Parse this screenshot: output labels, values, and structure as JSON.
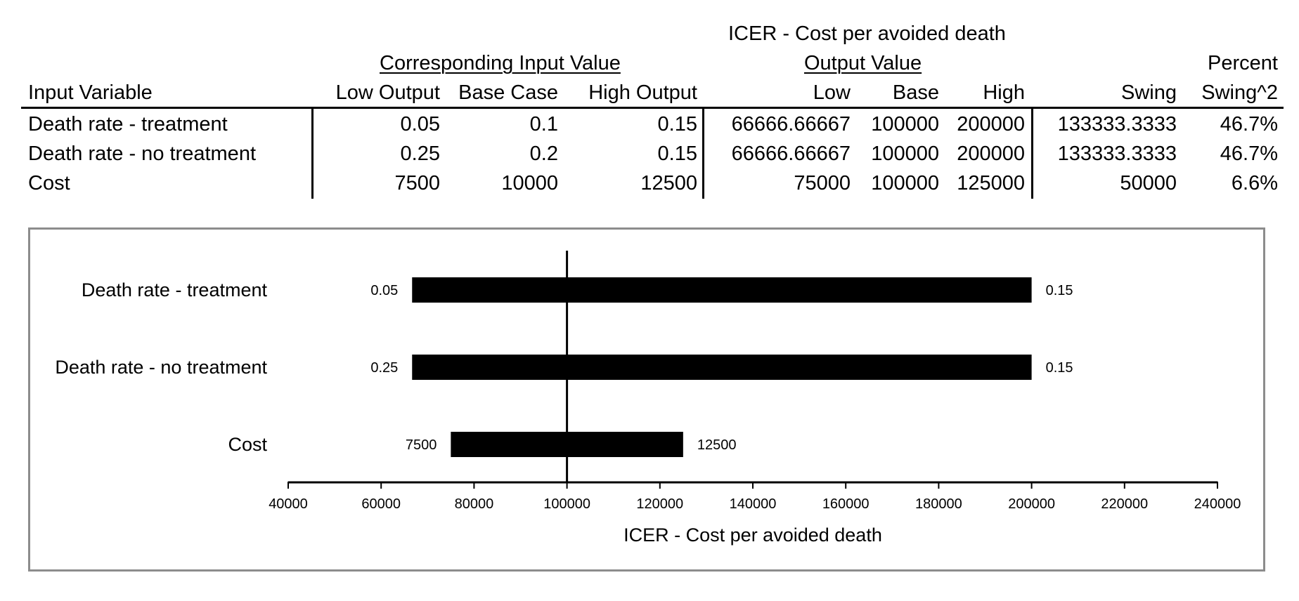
{
  "table": {
    "header_top": "ICER - Cost per avoided death",
    "group_input": "Corresponding Input Value",
    "group_output": "Output Value",
    "percent_label": "Percent",
    "columns": [
      "Input Variable",
      "Low Output",
      "Base Case",
      "High Output",
      "Low",
      "Base",
      "High",
      "Swing",
      "Swing^2"
    ],
    "rows": [
      {
        "variable": "Death rate - treatment",
        "low_input": "0.05",
        "base_input": "0.1",
        "high_input": "0.15",
        "low_out": "66666.66667",
        "base_out": "100000",
        "high_out": "200000",
        "swing": "133333.3333",
        "pct": "46.7%"
      },
      {
        "variable": "Death rate - no treatment",
        "low_input": "0.25",
        "base_input": "0.2",
        "high_input": "0.15",
        "low_out": "66666.66667",
        "base_out": "100000",
        "high_out": "200000",
        "swing": "133333.3333",
        "pct": "46.7%"
      },
      {
        "variable": "Cost",
        "low_input": "7500",
        "base_input": "10000",
        "high_input": "12500",
        "low_out": "75000",
        "base_out": "100000",
        "high_out": "125000",
        "swing": "50000",
        "pct": "6.6%"
      }
    ]
  },
  "chart_data": {
    "type": "bar",
    "orientation": "horizontal-tornado",
    "xlabel": "ICER - Cost per avoided death",
    "xlim": [
      40000,
      240000
    ],
    "xticks": [
      40000,
      60000,
      80000,
      100000,
      120000,
      140000,
      160000,
      180000,
      200000,
      220000,
      240000
    ],
    "base_value": 100000,
    "categories": [
      "Death rate - treatment",
      "Death rate - no treatment",
      "Cost"
    ],
    "bars": [
      {
        "category": "Death rate - treatment",
        "low": 66666.67,
        "high": 200000,
        "low_label": "0.05",
        "high_label": "0.15"
      },
      {
        "category": "Death rate - no treatment",
        "low": 66666.67,
        "high": 200000,
        "low_label": "0.25",
        "high_label": "0.15"
      },
      {
        "category": "Cost",
        "low": 75000,
        "high": 125000,
        "low_label": "7500",
        "high_label": "12500"
      }
    ],
    "colors": {
      "bar": "#000000",
      "frame": "#8c8c8c"
    },
    "grid": false,
    "legend": "none"
  }
}
